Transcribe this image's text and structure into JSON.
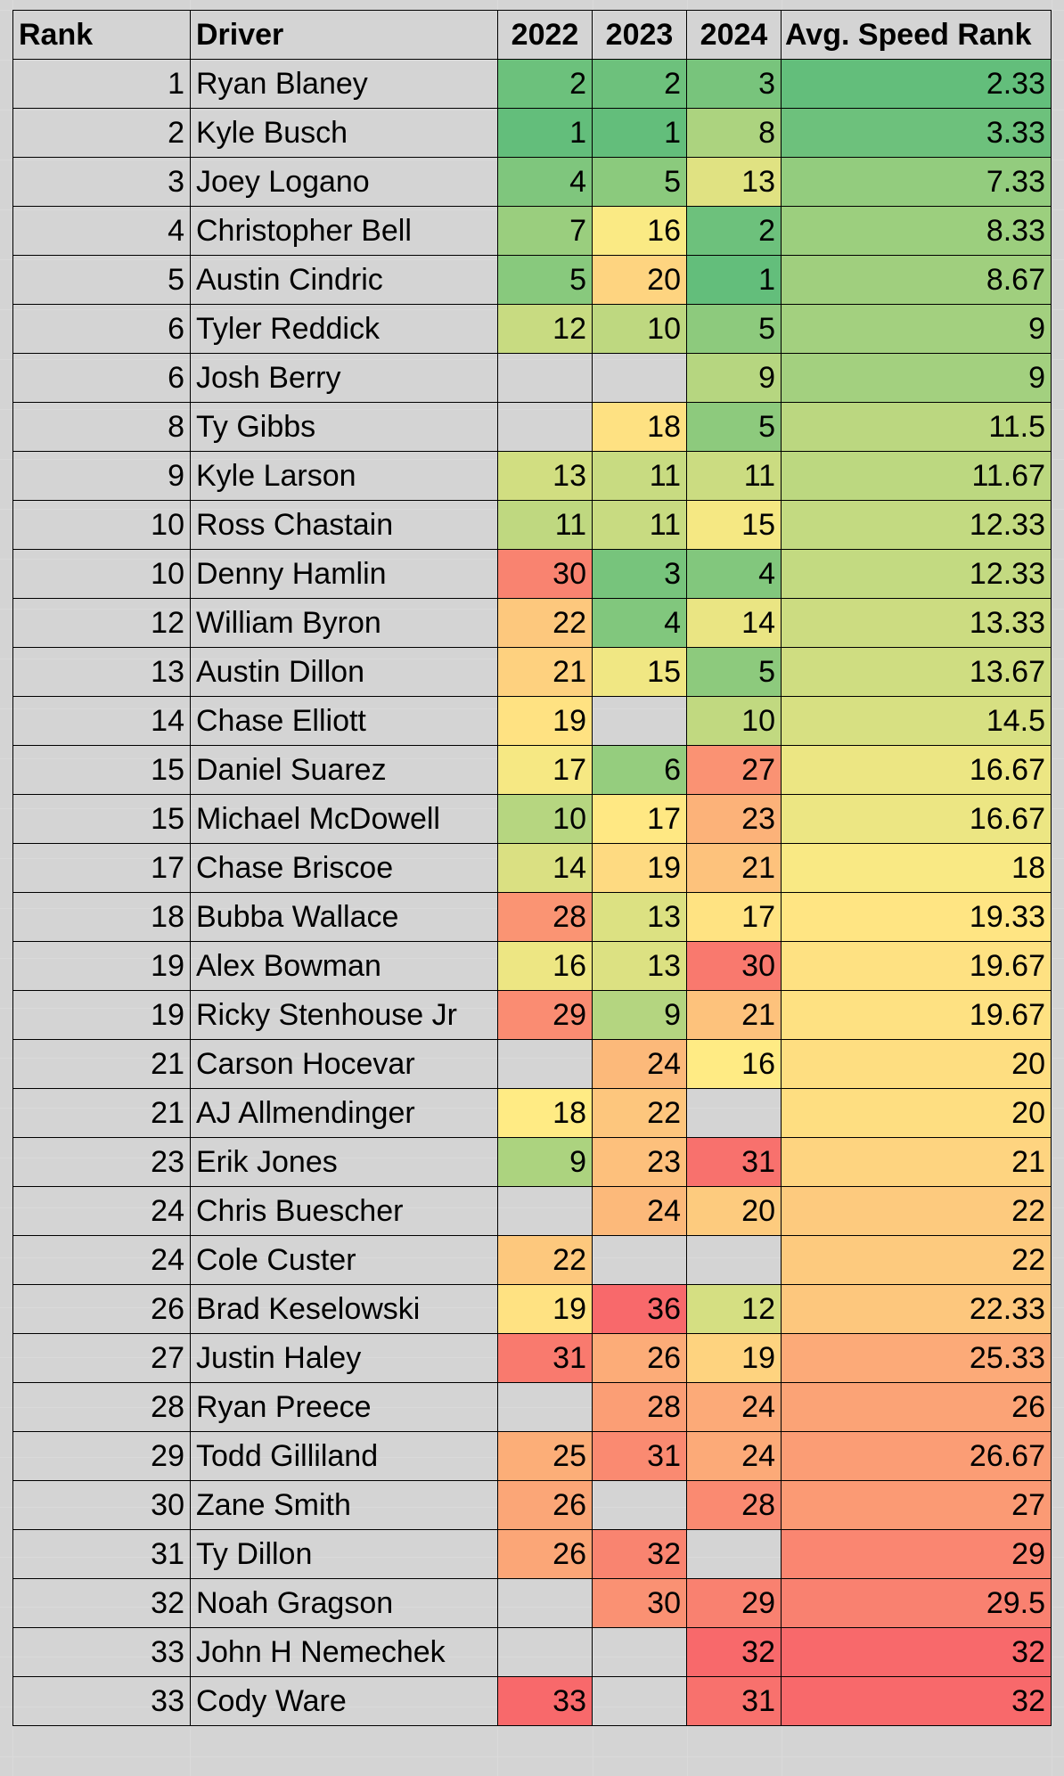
{
  "table": {
    "headers": {
      "rank": "Rank",
      "driver": "Driver",
      "y2022": "2022",
      "y2023": "2023",
      "y2024": "2024",
      "avg": "Avg. Speed Rank"
    },
    "rows": [
      {
        "rank": "1",
        "driver": "Ryan Blaney",
        "y2022": "2",
        "y2023": "2",
        "y2024": "3",
        "avg": "2.33"
      },
      {
        "rank": "2",
        "driver": "Kyle Busch",
        "y2022": "1",
        "y2023": "1",
        "y2024": "8",
        "avg": "3.33"
      },
      {
        "rank": "3",
        "driver": "Joey Logano",
        "y2022": "4",
        "y2023": "5",
        "y2024": "13",
        "avg": "7.33"
      },
      {
        "rank": "4",
        "driver": "Christopher Bell",
        "y2022": "7",
        "y2023": "16",
        "y2024": "2",
        "avg": "8.33"
      },
      {
        "rank": "5",
        "driver": "Austin Cindric",
        "y2022": "5",
        "y2023": "20",
        "y2024": "1",
        "avg": "8.67"
      },
      {
        "rank": "6",
        "driver": "Tyler Reddick",
        "y2022": "12",
        "y2023": "10",
        "y2024": "5",
        "avg": "9"
      },
      {
        "rank": "6",
        "driver": "Josh Berry",
        "y2022": "",
        "y2023": "",
        "y2024": "9",
        "avg": "9"
      },
      {
        "rank": "8",
        "driver": "Ty Gibbs",
        "y2022": "",
        "y2023": "18",
        "y2024": "5",
        "avg": "11.5"
      },
      {
        "rank": "9",
        "driver": "Kyle Larson",
        "y2022": "13",
        "y2023": "11",
        "y2024": "11",
        "avg": "11.67"
      },
      {
        "rank": "10",
        "driver": "Ross Chastain",
        "y2022": "11",
        "y2023": "11",
        "y2024": "15",
        "avg": "12.33"
      },
      {
        "rank": "10",
        "driver": "Denny Hamlin",
        "y2022": "30",
        "y2023": "3",
        "y2024": "4",
        "avg": "12.33"
      },
      {
        "rank": "12",
        "driver": "William Byron",
        "y2022": "22",
        "y2023": "4",
        "y2024": "14",
        "avg": "13.33"
      },
      {
        "rank": "13",
        "driver": "Austin Dillon",
        "y2022": "21",
        "y2023": "15",
        "y2024": "5",
        "avg": "13.67"
      },
      {
        "rank": "14",
        "driver": "Chase Elliott",
        "y2022": "19",
        "y2023": "",
        "y2024": "10",
        "avg": "14.5"
      },
      {
        "rank": "15",
        "driver": "Daniel Suarez",
        "y2022": "17",
        "y2023": "6",
        "y2024": "27",
        "avg": "16.67"
      },
      {
        "rank": "15",
        "driver": "Michael McDowell",
        "y2022": "10",
        "y2023": "17",
        "y2024": "23",
        "avg": "16.67"
      },
      {
        "rank": "17",
        "driver": "Chase Briscoe",
        "y2022": "14",
        "y2023": "19",
        "y2024": "21",
        "avg": "18"
      },
      {
        "rank": "18",
        "driver": "Bubba Wallace",
        "y2022": "28",
        "y2023": "13",
        "y2024": "17",
        "avg": "19.33"
      },
      {
        "rank": "19",
        "driver": "Alex Bowman",
        "y2022": "16",
        "y2023": "13",
        "y2024": "30",
        "avg": "19.67"
      },
      {
        "rank": "19",
        "driver": "Ricky Stenhouse Jr",
        "y2022": "29",
        "y2023": "9",
        "y2024": "21",
        "avg": "19.67"
      },
      {
        "rank": "21",
        "driver": "Carson Hocevar",
        "y2022": "",
        "y2023": "24",
        "y2024": "16",
        "avg": "20"
      },
      {
        "rank": "21",
        "driver": "AJ Allmendinger",
        "y2022": "18",
        "y2023": "22",
        "y2024": "",
        "avg": "20"
      },
      {
        "rank": "23",
        "driver": "Erik Jones",
        "y2022": "9",
        "y2023": "23",
        "y2024": "31",
        "avg": "21"
      },
      {
        "rank": "24",
        "driver": "Chris Buescher",
        "y2022": "",
        "y2023": "24",
        "y2024": "20",
        "avg": "22"
      },
      {
        "rank": "24",
        "driver": "Cole Custer",
        "y2022": "22",
        "y2023": "",
        "y2024": "",
        "avg": "22"
      },
      {
        "rank": "26",
        "driver": "Brad Keselowski",
        "y2022": "19",
        "y2023": "36",
        "y2024": "12",
        "avg": "22.33"
      },
      {
        "rank": "27",
        "driver": "Justin Haley",
        "y2022": "31",
        "y2023": "26",
        "y2024": "19",
        "avg": "25.33"
      },
      {
        "rank": "28",
        "driver": "Ryan Preece",
        "y2022": "",
        "y2023": "28",
        "y2024": "24",
        "avg": "26"
      },
      {
        "rank": "29",
        "driver": "Todd Gilliland",
        "y2022": "25",
        "y2023": "31",
        "y2024": "24",
        "avg": "26.67"
      },
      {
        "rank": "30",
        "driver": "Zane Smith",
        "y2022": "26",
        "y2023": "",
        "y2024": "28",
        "avg": "27"
      },
      {
        "rank": "31",
        "driver": "Ty Dillon",
        "y2022": "26",
        "y2023": "32",
        "y2024": "",
        "avg": "29"
      },
      {
        "rank": "32",
        "driver": "Noah Gragson",
        "y2022": "",
        "y2023": "30",
        "y2024": "29",
        "avg": "29.5"
      },
      {
        "rank": "33",
        "driver": "John H Nemechek",
        "y2022": "",
        "y2023": "",
        "y2024": "32",
        "avg": "32"
      },
      {
        "rank": "33",
        "driver": "Cody Ware",
        "y2022": "33",
        "y2023": "",
        "y2024": "31",
        "avg": "32"
      }
    ]
  },
  "color_scale": {
    "low": "#63BE7B",
    "mid": "#FFEB84",
    "high": "#F8696B"
  }
}
